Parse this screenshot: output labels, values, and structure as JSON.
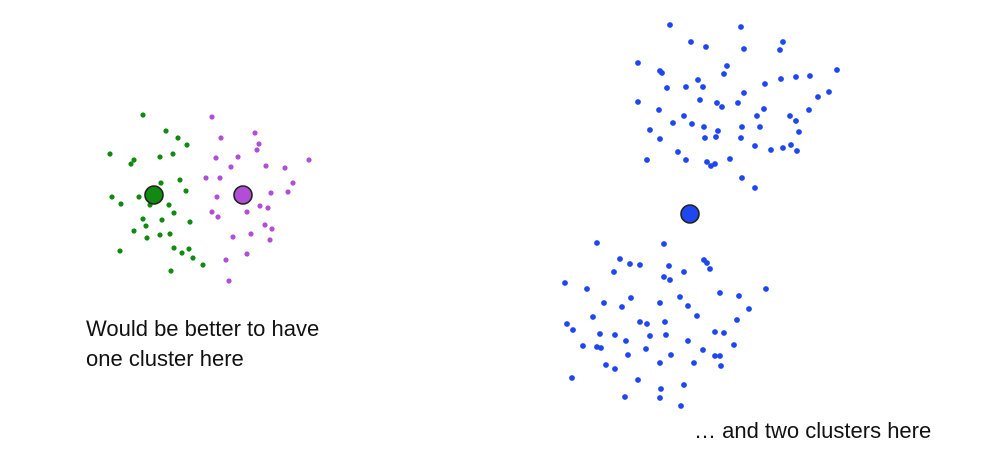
{
  "captions": {
    "left_line1": "Would be better to have",
    "left_line2": "one cluster here",
    "right": "… and two clusters here"
  },
  "colors": {
    "green": "#128a12",
    "purple": "#b04fd6",
    "blue": "#1f47f0",
    "centroid_outline": "#222222"
  },
  "clusters": {
    "left_green_point_count": 33,
    "left_purple_point_count": 30,
    "right_blue_top_point_count": 62,
    "right_blue_bottom_point_count": 63,
    "centroids": [
      "green",
      "purple",
      "blue"
    ]
  }
}
